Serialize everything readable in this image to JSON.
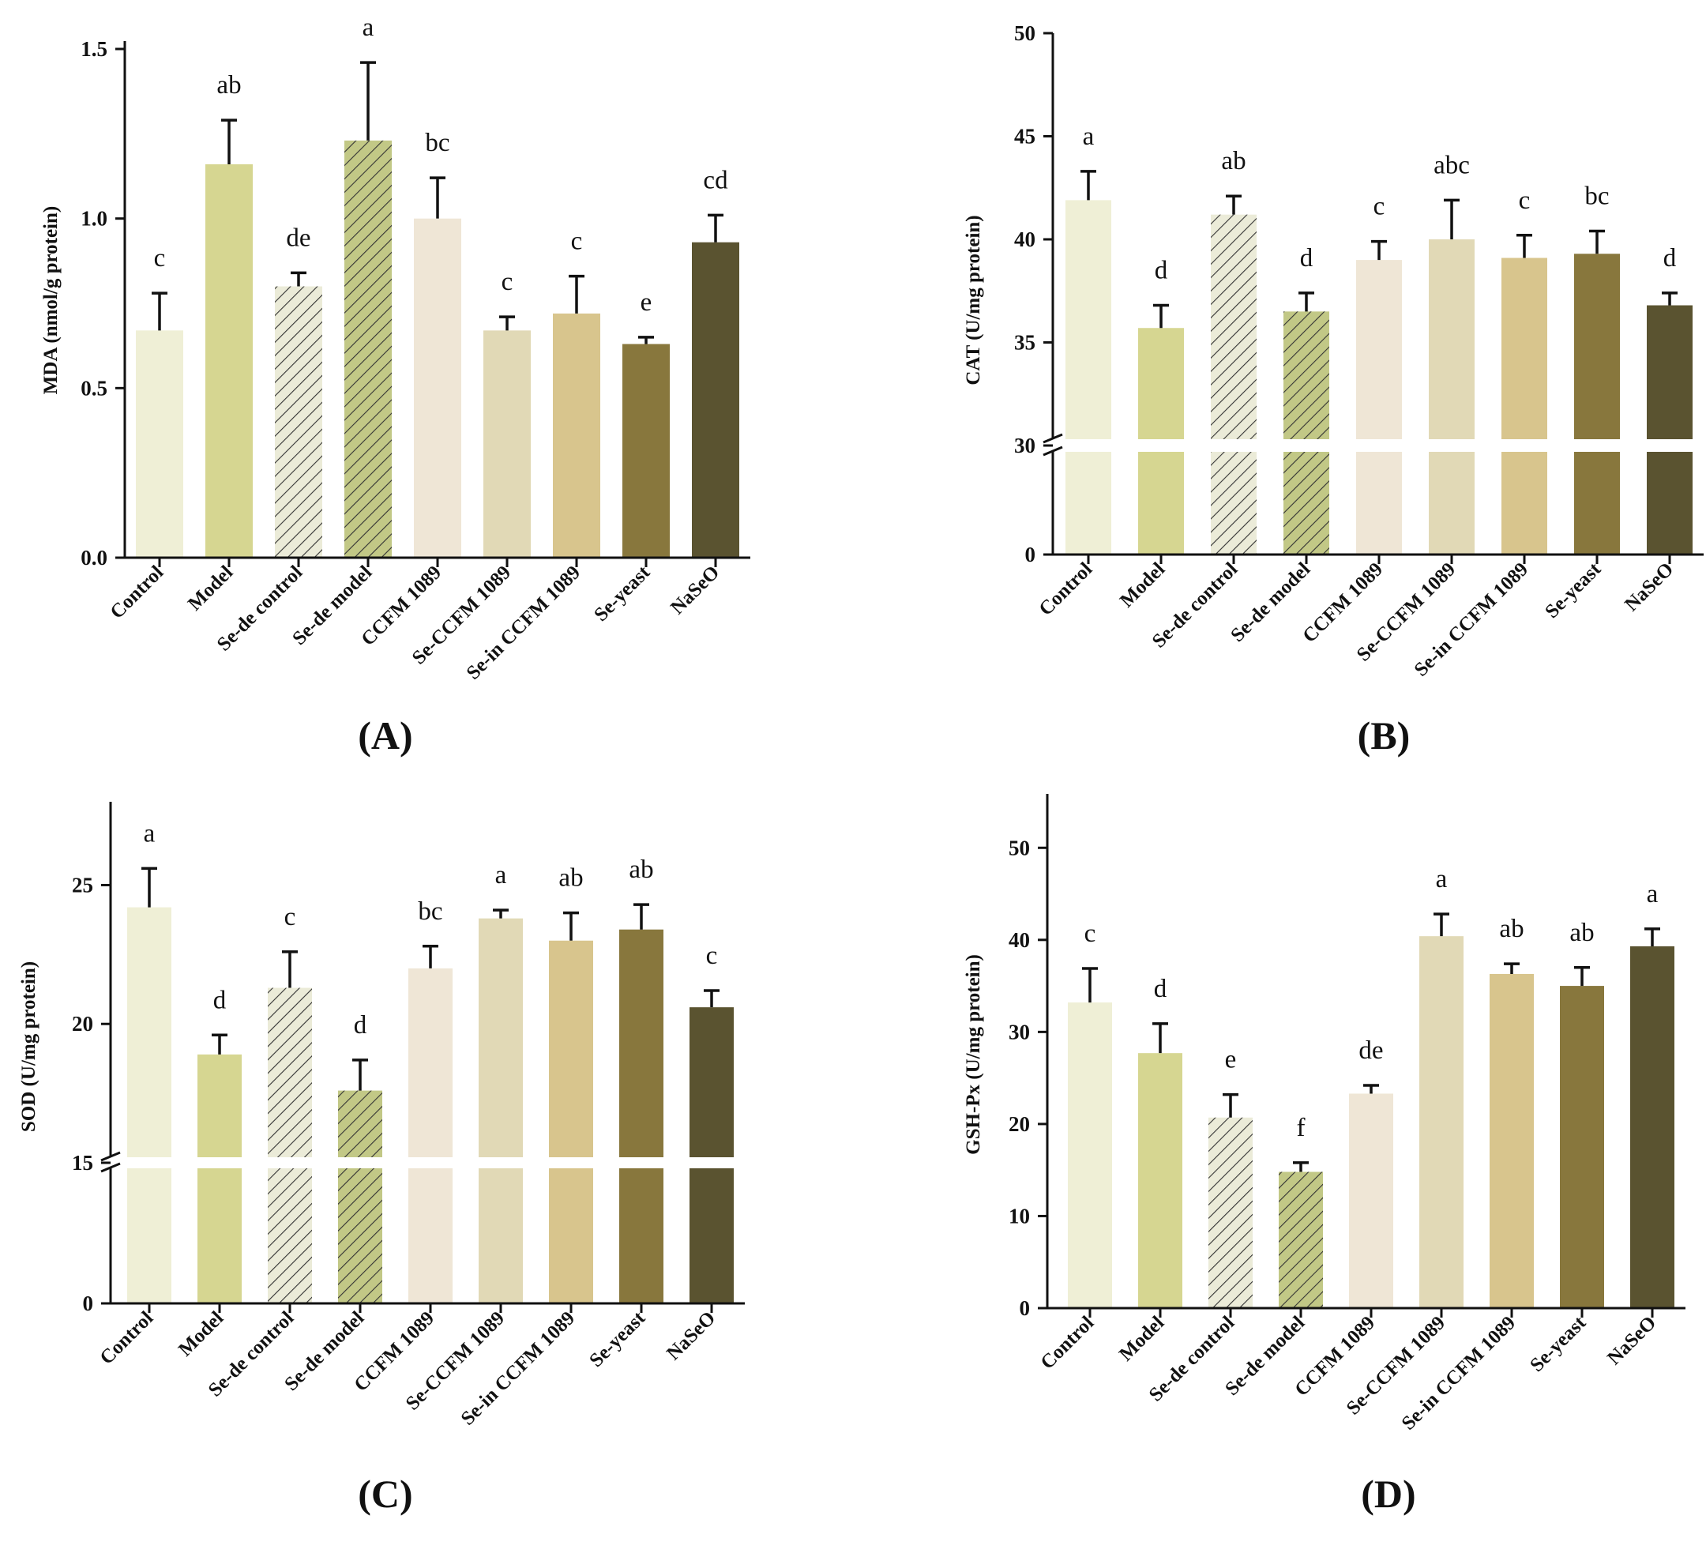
{
  "palette": {
    "Control": "#efefd6",
    "Model": "#d6d691",
    "Se-de control": "#ebebd8",
    "Se-de model": "#c2c886",
    "CCFM 1089": "#efe6d6",
    "Se-CCFM 1089": "#e1d9b6",
    "Se-in CCFM 1089": "#d8c58d",
    "Se-yeast": "#88773d",
    "NaSeO": "#5a5330"
  },
  "hatch_color": "#333333",
  "chart_data": [
    {
      "id": "A",
      "type": "bar",
      "panel_label": "(A)",
      "ylabel": "MDA (nmol/g protein)",
      "categories": [
        "Control",
        "Model",
        "Se-de control",
        "Se-de model",
        "CCFM 1089",
        "Se-CCFM 1089",
        "Se-in CCFM 1089",
        "Se-yeast",
        "NaSeO"
      ],
      "values": [
        0.67,
        1.16,
        0.8,
        1.23,
        1.0,
        0.67,
        0.72,
        0.63,
        0.93
      ],
      "errors": [
        0.11,
        0.13,
        0.04,
        0.23,
        0.12,
        0.04,
        0.11,
        0.02,
        0.08
      ],
      "significance": [
        "c",
        "ab",
        "de",
        "a",
        "bc",
        "c",
        "c",
        "e",
        "cd"
      ],
      "hatched": [
        false,
        false,
        true,
        true,
        false,
        false,
        false,
        false,
        false
      ],
      "ylim": [
        0,
        1.5
      ],
      "yticks": [
        0.0,
        0.5,
        1.0,
        1.5
      ],
      "ytick_labels": [
        "0.0",
        "0.5",
        "1.0",
        "1.5"
      ],
      "axis_break": null
    },
    {
      "id": "B",
      "type": "bar",
      "panel_label": "(B)",
      "ylabel": "CAT (U/mg protein)",
      "categories": [
        "Control",
        "Model",
        "Se-de control",
        "Se-de model",
        "CCFM 1089",
        "Se-CCFM 1089",
        "Se-in CCFM 1089",
        "Se-yeast",
        "NaSeO"
      ],
      "values": [
        41.9,
        35.7,
        41.2,
        36.5,
        39.0,
        40.0,
        39.1,
        39.3,
        36.8
      ],
      "errors": [
        1.4,
        1.1,
        0.9,
        0.9,
        0.9,
        1.9,
        1.1,
        1.1,
        0.6
      ],
      "significance": [
        "a",
        "d",
        "ab",
        "d",
        "c",
        "abc",
        "c",
        "bc",
        "d"
      ],
      "hatched": [
        false,
        false,
        true,
        true,
        false,
        false,
        false,
        false,
        false
      ],
      "ylim": [
        0,
        50
      ],
      "yticks": [
        0,
        30,
        35,
        40,
        45,
        50
      ],
      "ytick_labels": [
        "0",
        "30",
        "35",
        "40",
        "45",
        "50"
      ],
      "axis_break": 30
    },
    {
      "id": "C",
      "type": "bar",
      "panel_label": "(C)",
      "ylabel": "SOD (U/mg protein)",
      "categories": [
        "Control",
        "Model",
        "Se-de control",
        "Se-de model",
        "CCFM 1089",
        "Se-CCFM 1089",
        "Se-in CCFM 1089",
        "Se-yeast",
        "NaSeO"
      ],
      "values": [
        24.2,
        18.9,
        21.3,
        17.6,
        22.0,
        23.8,
        23.0,
        23.4,
        20.6
      ],
      "errors": [
        1.4,
        0.7,
        1.3,
        1.1,
        0.8,
        0.3,
        1.0,
        0.9,
        0.6
      ],
      "significance": [
        "a",
        "d",
        "c",
        "d",
        "bc",
        "a",
        "ab",
        "ab",
        "c"
      ],
      "hatched": [
        false,
        false,
        true,
        true,
        false,
        false,
        false,
        false,
        false
      ],
      "ylim": [
        0,
        28
      ],
      "yticks": [
        0,
        15,
        20,
        25
      ],
      "ytick_labels": [
        "0",
        "15",
        "20",
        "25"
      ],
      "axis_break": 15
    },
    {
      "id": "D",
      "type": "bar",
      "panel_label": "(D)",
      "ylabel": "GSH-Px (U/mg protein)",
      "categories": [
        "Control",
        "Model",
        "Se-de control",
        "Se-de model",
        "CCFM 1089",
        "Se-CCFM 1089",
        "Se-in CCFM 1089",
        "Se-yeast",
        "NaSeO"
      ],
      "values": [
        33.2,
        27.7,
        20.7,
        14.8,
        23.3,
        40.4,
        36.3,
        35.0,
        39.3
      ],
      "errors": [
        3.7,
        3.2,
        2.5,
        1.0,
        0.9,
        2.4,
        1.1,
        2.0,
        1.9
      ],
      "significance": [
        "c",
        "d",
        "e",
        "f",
        "de",
        "a",
        "ab",
        "ab",
        "a"
      ],
      "hatched": [
        false,
        false,
        true,
        true,
        false,
        false,
        false,
        false,
        false
      ],
      "ylim": [
        0,
        55
      ],
      "yticks": [
        0,
        10,
        20,
        30,
        40,
        50
      ],
      "ytick_labels": [
        "0",
        "10",
        "20",
        "30",
        "40",
        "50"
      ],
      "axis_break": null
    }
  ]
}
